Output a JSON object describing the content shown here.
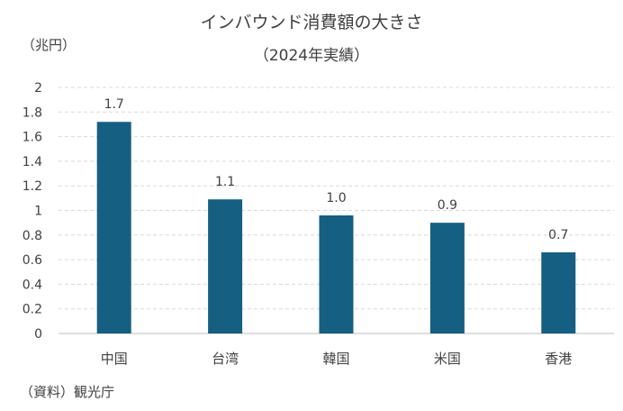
{
  "chart_data": {
    "type": "bar",
    "title": "インバウンド消費額の大きさ",
    "subtitle": "（2024年実績）",
    "ylabel": "（兆円）",
    "xlabel": "",
    "categories": [
      "中国",
      "台湾",
      "韓国",
      "米国",
      "香港"
    ],
    "values": [
      1.72,
      1.09,
      0.96,
      0.9,
      0.66
    ],
    "data_labels": [
      "1.7",
      "1.1",
      "1.0",
      "0.9",
      "0.7"
    ],
    "ylim": [
      0,
      2
    ],
    "yticks": [
      "0",
      "0.2",
      "0.4",
      "0.6",
      "0.8",
      "1",
      "1.2",
      "1.4",
      "1.6",
      "1.8",
      "2"
    ],
    "grid": true,
    "bar_color": "#155f82",
    "source": "（資料）観光庁"
  }
}
